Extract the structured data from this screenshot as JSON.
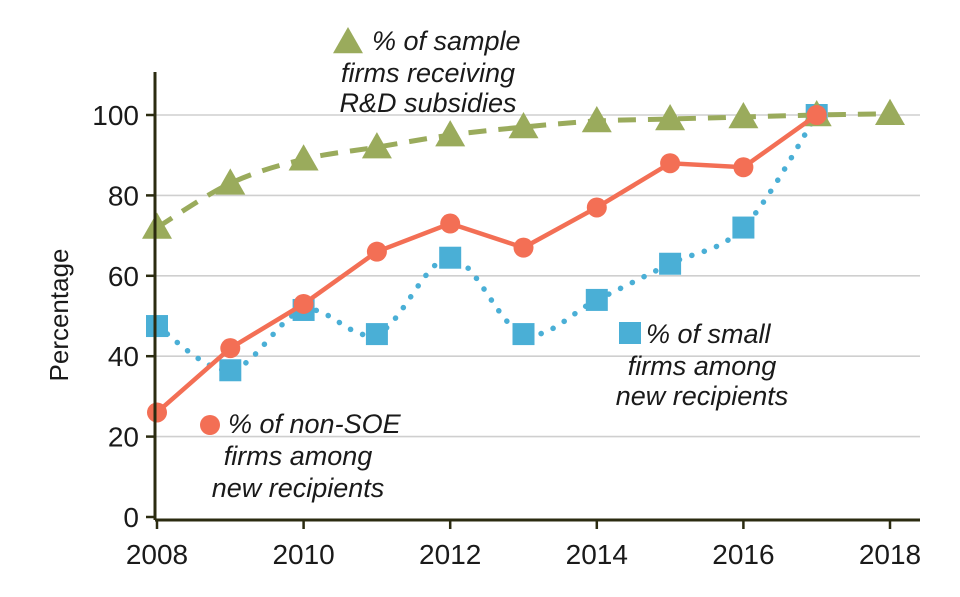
{
  "chart_data": {
    "type": "line",
    "title": "",
    "xlabel": "",
    "ylabel": "Percentage",
    "xlim": [
      2008,
      2018
    ],
    "ylim": [
      0,
      110
    ],
    "xticks": [
      "2008",
      "2010",
      "2012",
      "2014",
      "2016",
      "2018"
    ],
    "yticks": [
      "0",
      "20",
      "40",
      "60",
      "80",
      "100"
    ],
    "grid": "horizontal",
    "colors": {
      "subsidies": "#9aab5c",
      "non_soe": "#f36f55",
      "small": "#4aafd6",
      "axis": "#2b2b10",
      "grid": "#cfcfcf"
    },
    "series": [
      {
        "key": "subsidies",
        "name_lines": [
          "% of sample",
          "firms receiving",
          "R&D subsidies"
        ],
        "style": "dashed",
        "marker": "triangle",
        "x": [
          2008,
          2009,
          2010,
          2011,
          2012,
          2013,
          2014,
          2015,
          2016,
          2017,
          2018
        ],
        "values": [
          72,
          83,
          89,
          92,
          95,
          97,
          98.5,
          99,
          99.5,
          100,
          100.3
        ]
      },
      {
        "key": "non_soe",
        "name_lines": [
          "% of non-SOE",
          "firms among",
          "new recipients"
        ],
        "style": "solid",
        "marker": "circle",
        "x": [
          2008,
          2009,
          2010,
          2011,
          2012,
          2013,
          2014,
          2015,
          2016,
          2017
        ],
        "values": [
          26,
          42,
          53,
          66,
          73,
          67,
          77,
          88,
          87,
          100
        ]
      },
      {
        "key": "small",
        "name_lines": [
          "% of small",
          "firms among",
          "new recipients"
        ],
        "style": "dotted",
        "marker": "square",
        "x": [
          2008,
          2009,
          2010,
          2011,
          2012,
          2013,
          2014,
          2015,
          2016,
          2017
        ],
        "values": [
          47.5,
          36.5,
          51.5,
          45.5,
          64.5,
          45.5,
          54,
          63,
          72,
          100
        ]
      }
    ]
  }
}
